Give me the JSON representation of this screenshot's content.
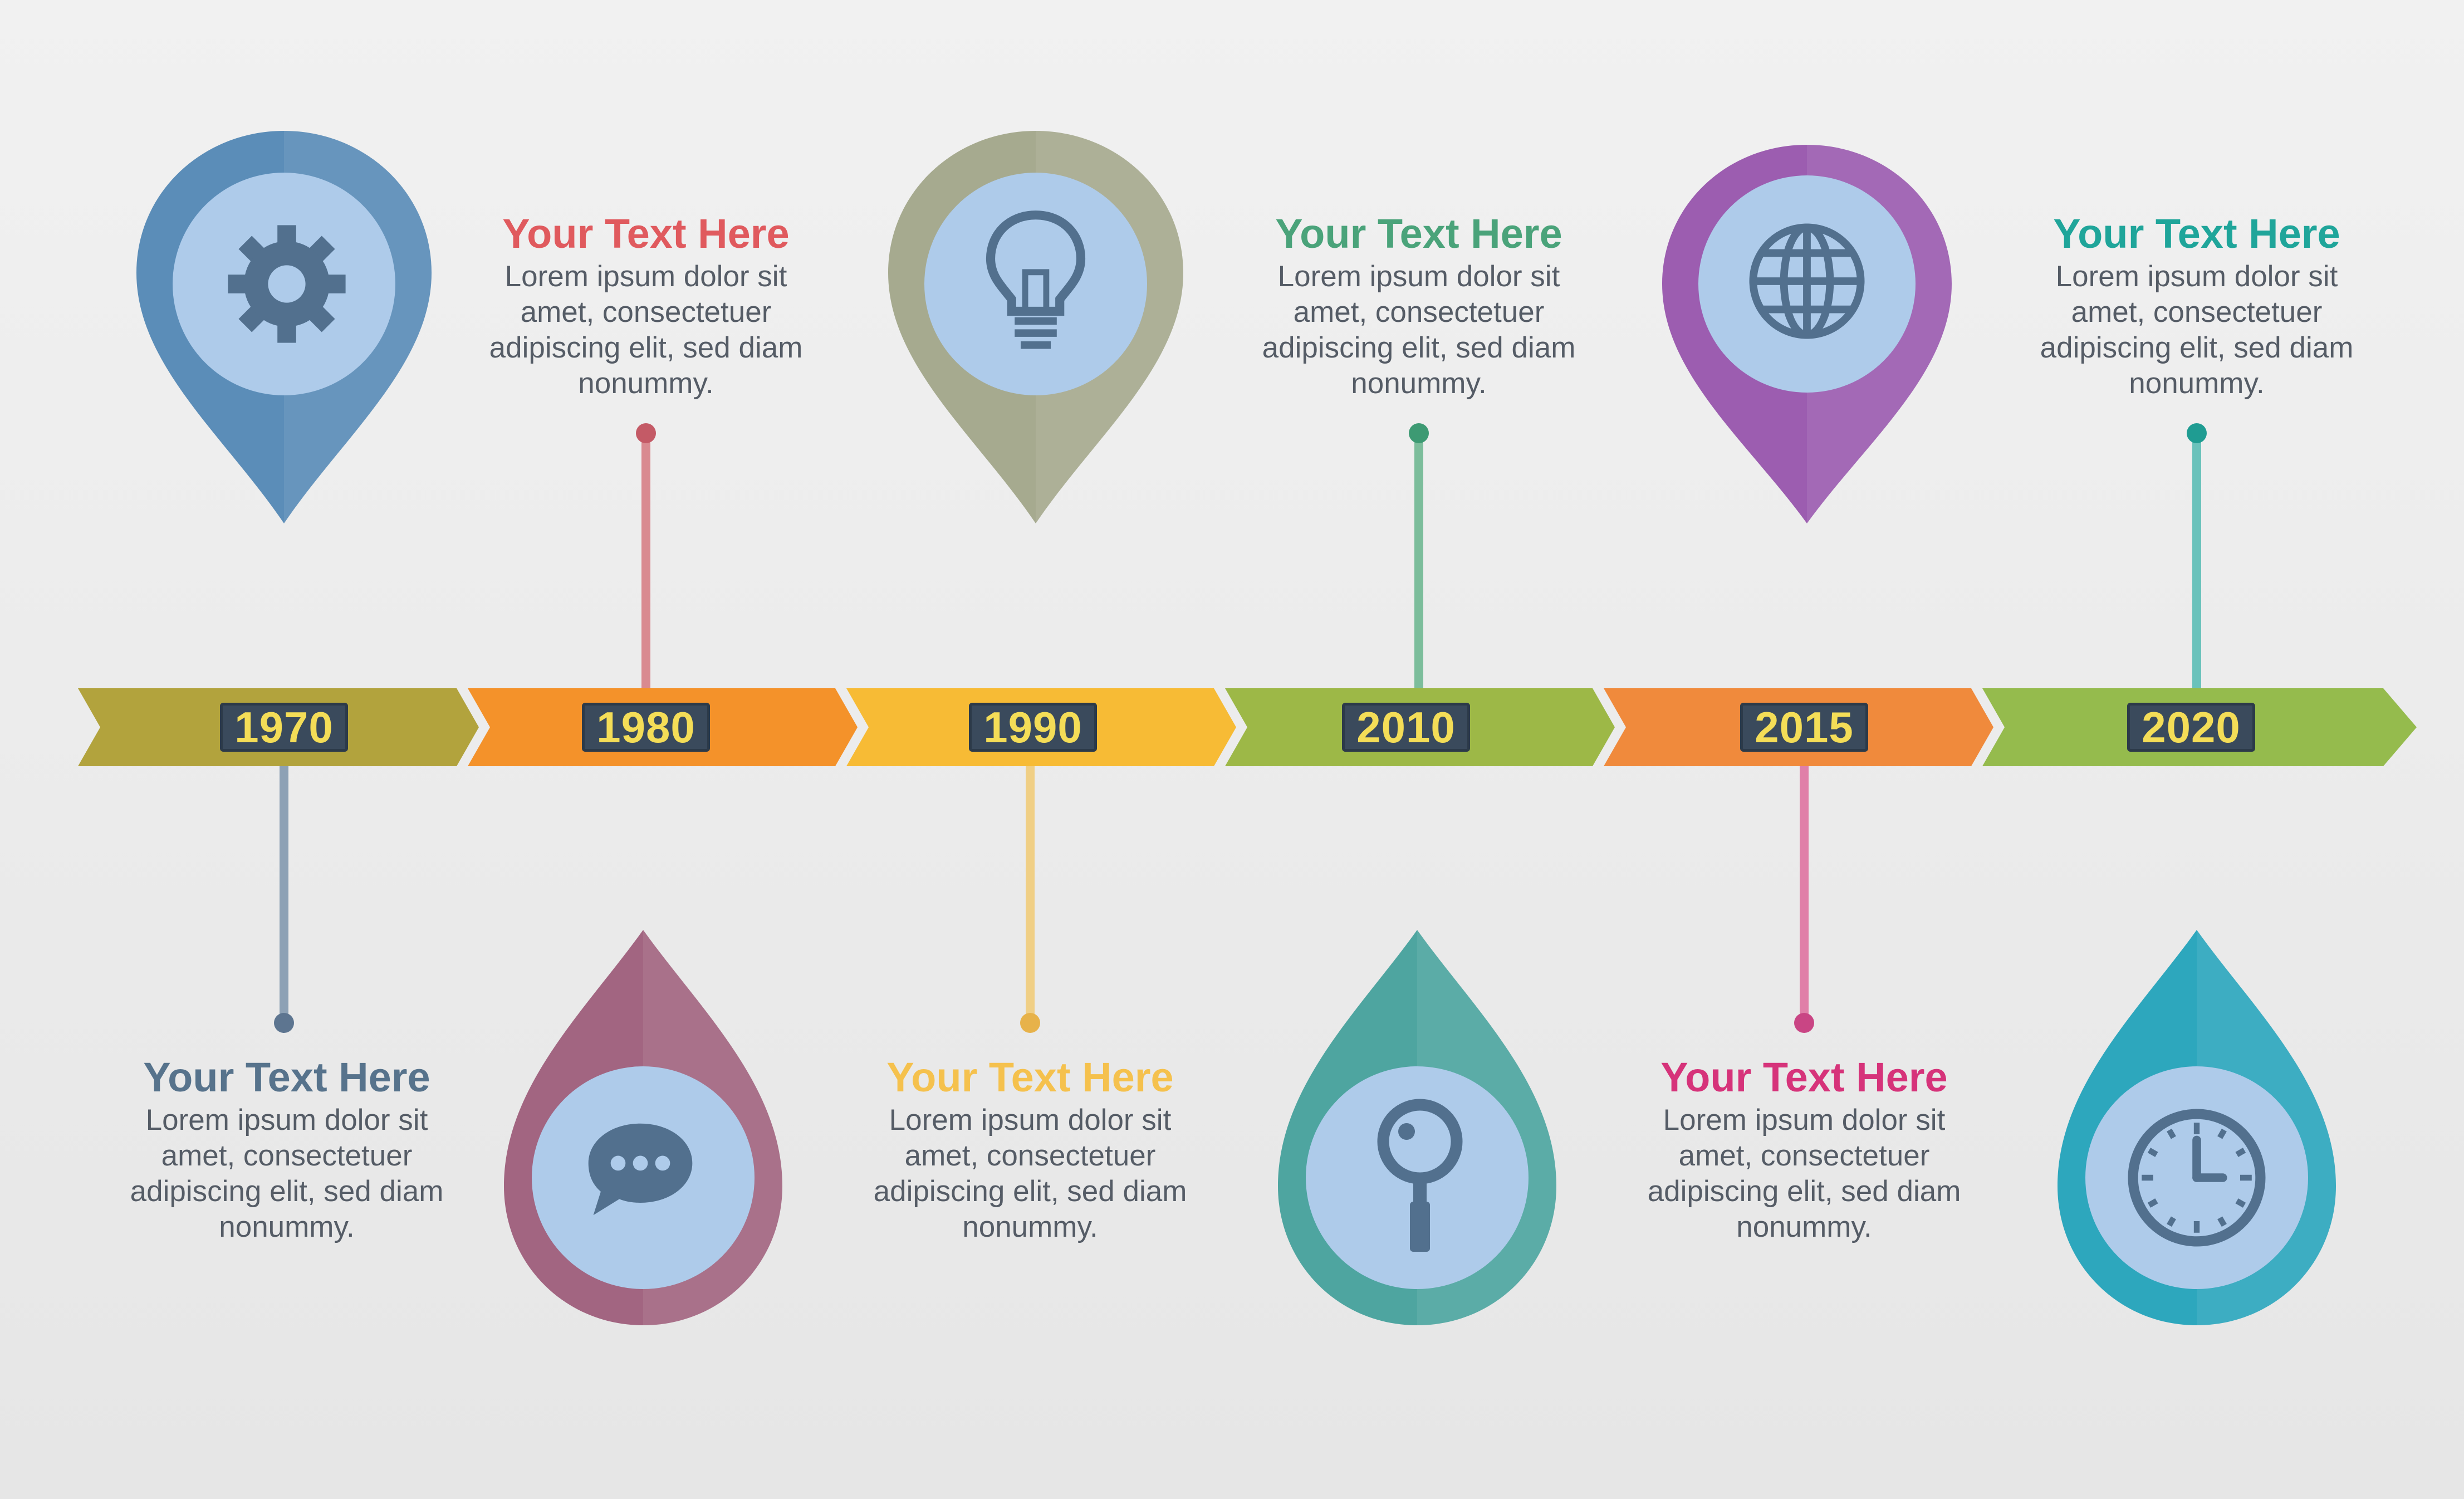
{
  "timeline": {
    "segments": [
      {
        "year": "1970",
        "color": "#b2a33d"
      },
      {
        "year": "1980",
        "color": "#f4922a"
      },
      {
        "year": "1990",
        "color": "#f7bb35"
      },
      {
        "year": "2010",
        "color": "#9db847"
      },
      {
        "year": "2015",
        "color": "#f08a3c"
      },
      {
        "year": "2020",
        "color": "#95bb4d"
      }
    ]
  },
  "markers": [
    {
      "icon": "gear-icon",
      "color": "#5b8db8"
    },
    {
      "icon": "lightbulb-icon",
      "color": "#a6aa8f"
    },
    {
      "icon": "globe-icon",
      "color": "#9c5db0"
    },
    {
      "icon": "chat-bubble-icon",
      "color": "#a26581"
    },
    {
      "icon": "magnifier-icon",
      "color": "#4ea5a0"
    },
    {
      "icon": "clock-icon",
      "color": "#2da7bd"
    }
  ],
  "text_blocks": [
    {
      "title": "Your Text Here",
      "body": "Lorem ipsum dolor sit amet, consectetuer adipiscing elit, sed diam nonummy.",
      "title_color": "#e05a5e"
    },
    {
      "title": "Your Text Here",
      "body": "Lorem ipsum dolor sit amet, consectetuer adipiscing elit, sed diam nonummy.",
      "title_color": "#4aa37a"
    },
    {
      "title": "Your Text Here",
      "body": "Lorem ipsum dolor sit amet, consectetuer adipiscing elit, sed diam nonummy.",
      "title_color": "#1fa59a"
    },
    {
      "title": "Your Text Here",
      "body": "Lorem ipsum dolor sit amet, consectetuer adipiscing elit, sed diam nonummy.",
      "title_color": "#57738c"
    },
    {
      "title": "Your Text Here",
      "body": "Lorem ipsum dolor sit amet, consectetuer adipiscing elit, sed diam nonummy.",
      "title_color": "#f5c14d"
    },
    {
      "title": "Your Text Here",
      "body": "Lorem ipsum dolor sit amet, consectetuer adipiscing elit, sed diam nonummy.",
      "title_color": "#d6337a"
    }
  ]
}
